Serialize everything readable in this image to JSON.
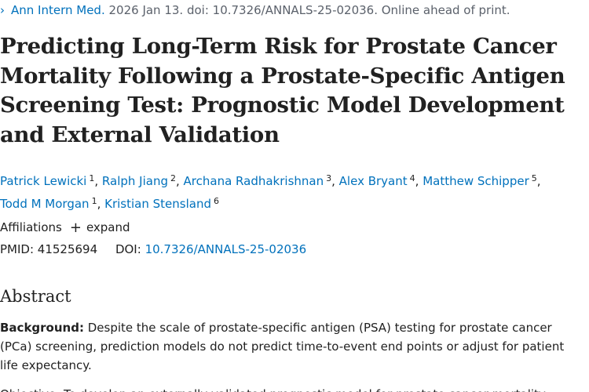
{
  "journal": {
    "chevron": "›",
    "name": "Ann Intern Med.",
    "citation": " 2026 Jan 13. doi: 10.7326/ANNALS-25-02036. Online ahead of print."
  },
  "title": "Predicting Long-Term Risk for Prostate Cancer Mortality Following a Prostate-Specific Antigen Screening Test: Prognostic Model Development and External Validation",
  "authors": [
    {
      "name": "Patrick Lewicki",
      "aff": "1"
    },
    {
      "name": "Ralph Jiang",
      "aff": "2"
    },
    {
      "name": "Archana Radhakrishnan",
      "aff": "3"
    },
    {
      "name": "Alex Bryant",
      "aff": "4"
    },
    {
      "name": "Matthew Schipper",
      "aff": "5"
    },
    {
      "name": "Todd M Morgan",
      "aff": "1"
    },
    {
      "name": "Kristian Stensland",
      "aff": "6"
    }
  ],
  "separator": ",",
  "affiliations": {
    "label": "Affiliations",
    "expand_icon": "+",
    "expand_label": "expand"
  },
  "ids": {
    "pmid_label": "PMID:",
    "pmid": "41525694",
    "doi_label": "DOI:",
    "doi": "10.7326/ANNALS-25-02036"
  },
  "abstract": {
    "heading": "Abstract",
    "background_label": "Background:",
    "background_text": " Despite the scale of prostate-specific antigen (PSA) testing for prostate cancer (PCa) screening, prediction models do not predict time-to-event end points or adjust for patient life expectancy.",
    "cut_off_text": "Objective: To develop an externally validated prognostic model for prostate cancer mortality"
  }
}
